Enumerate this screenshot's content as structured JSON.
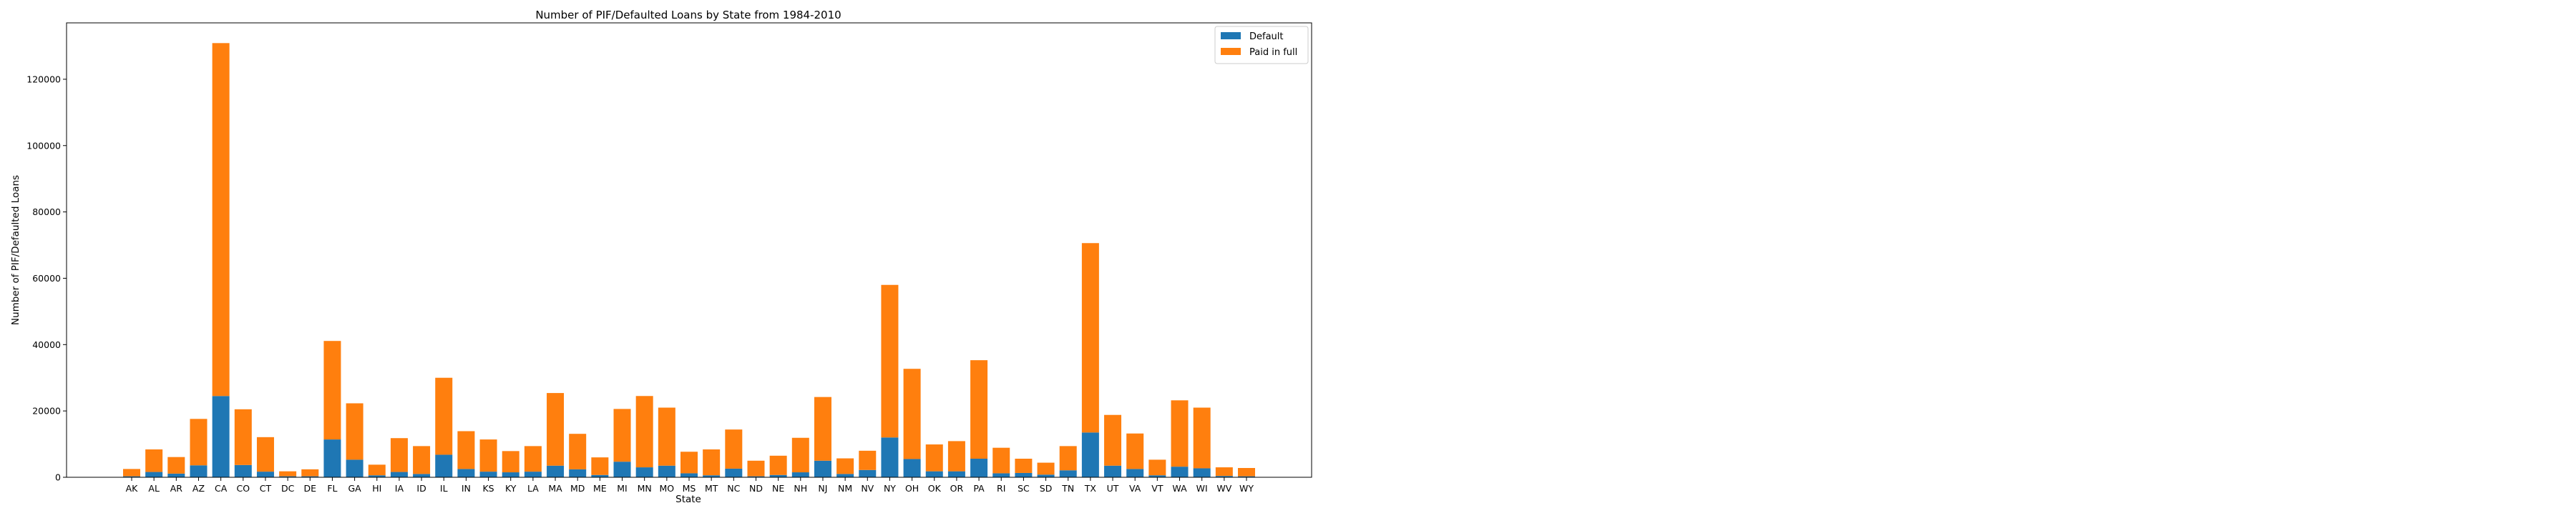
{
  "chart_data": {
    "type": "bar",
    "stacked": true,
    "title": "Number of PIF/Defaulted Loans by State from 1984-2010",
    "xlabel": "State",
    "ylabel": "Number of PIF/Defaulted Loans",
    "ylim": [
      0,
      137000
    ],
    "yticks": [
      0,
      20000,
      40000,
      60000,
      80000,
      100000,
      120000
    ],
    "grid": false,
    "legend_position": "top-right",
    "categories": [
      "AK",
      "AL",
      "AR",
      "AZ",
      "CA",
      "CO",
      "CT",
      "DC",
      "DE",
      "FL",
      "GA",
      "HI",
      "IA",
      "ID",
      "IL",
      "IN",
      "KS",
      "KY",
      "LA",
      "MA",
      "MD",
      "ME",
      "MI",
      "MN",
      "MO",
      "MS",
      "MT",
      "NC",
      "ND",
      "NE",
      "NH",
      "NJ",
      "NM",
      "NV",
      "NY",
      "OH",
      "OK",
      "OR",
      "PA",
      "RI",
      "SC",
      "SD",
      "TN",
      "TX",
      "UT",
      "VA",
      "VT",
      "WA",
      "WI",
      "WV",
      "WY"
    ],
    "series": [
      {
        "name": "Default",
        "color": "#1f77b4",
        "values": [
          300,
          1600,
          1100,
          3600,
          24500,
          3700,
          1700,
          300,
          300,
          11400,
          5300,
          600,
          1600,
          1000,
          6800,
          2500,
          1700,
          1500,
          1700,
          3500,
          2400,
          700,
          4700,
          3000,
          3500,
          1200,
          600,
          2600,
          300,
          700,
          1500,
          5000,
          1000,
          2200,
          12000,
          5500,
          1800,
          1800,
          5600,
          1200,
          1300,
          800,
          2100,
          13500,
          3500,
          2500,
          600,
          3200,
          2700,
          400,
          300
        ]
      },
      {
        "name": "Paid in full",
        "color": "#ff7f0e",
        "values": [
          2200,
          6800,
          5000,
          14000,
          106400,
          16800,
          10400,
          1500,
          2100,
          29700,
          17000,
          3200,
          10200,
          8400,
          23200,
          11400,
          9700,
          6400,
          7700,
          21900,
          10700,
          5300,
          15900,
          21500,
          17500,
          6500,
          7800,
          11800,
          4700,
          5800,
          10400,
          19200,
          4700,
          5800,
          46000,
          27200,
          8100,
          9100,
          29700,
          7700,
          4300,
          3600,
          7300,
          57100,
          15300,
          10700,
          4700,
          20000,
          18300,
          2600,
          2500
        ]
      }
    ]
  }
}
